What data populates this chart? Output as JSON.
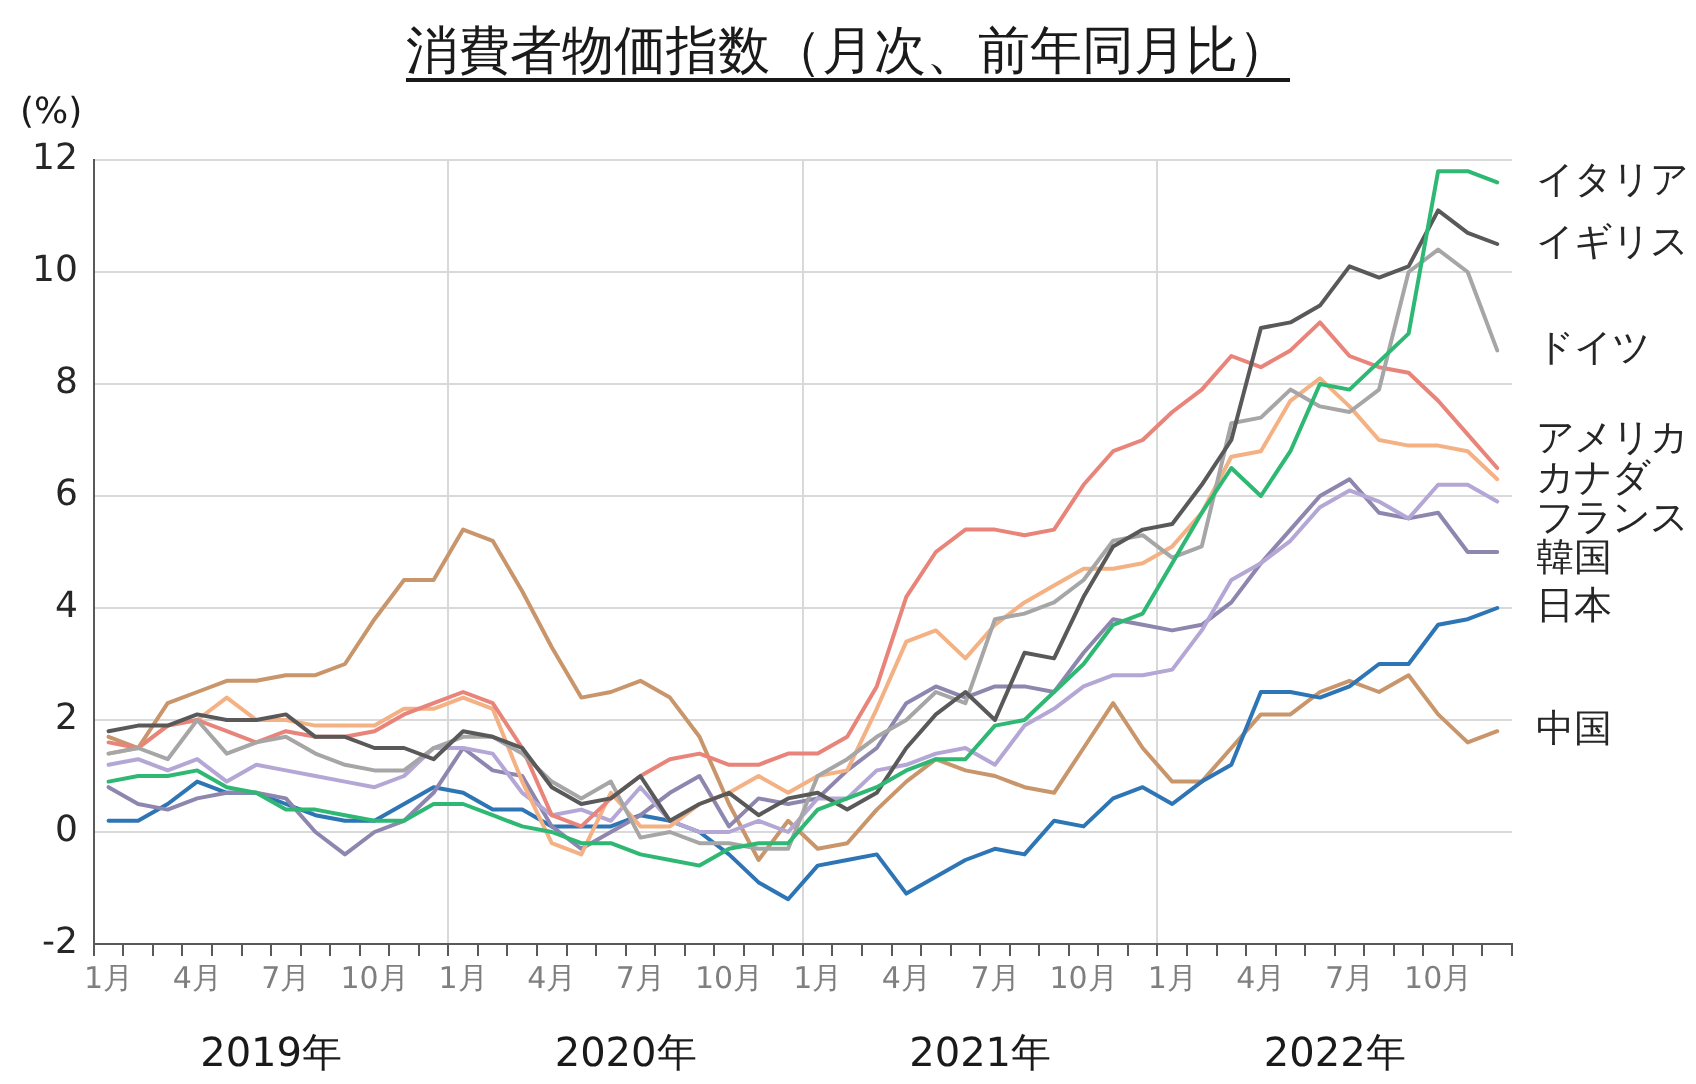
{
  "chart_data": {
    "type": "line",
    "title": "消費者物価指数（月次、前年同月比）",
    "ylabel": "(%)",
    "categories": [
      "1月",
      null,
      null,
      "4月",
      null,
      null,
      "7月",
      null,
      null,
      "10月",
      null,
      null,
      "1月",
      null,
      null,
      "4月",
      null,
      null,
      "7月",
      null,
      null,
      "10月",
      null,
      null,
      "1月",
      null,
      null,
      "4月",
      null,
      null,
      "7月",
      null,
      null,
      "10月",
      null,
      null,
      "1月",
      null,
      null,
      "4月",
      null,
      null,
      "7月",
      null,
      null,
      "10月",
      null,
      null
    ],
    "annotations": [
      "2019年",
      "2020年",
      "2021年",
      "2022年"
    ],
    "ylim": [
      -2,
      12
    ],
    "yticks": [
      -2,
      0,
      2,
      4,
      6,
      8,
      10,
      12
    ],
    "grid": true,
    "legend": false,
    "marker": "none",
    "line_style": "solid",
    "series": [
      {
        "name": "イタリア",
        "color": "#2eb873",
        "values": [
          0.9,
          1.0,
          1.0,
          1.1,
          0.8,
          0.7,
          0.4,
          0.4,
          0.3,
          0.2,
          0.2,
          0.5,
          0.5,
          0.3,
          0.1,
          0.0,
          -0.2,
          -0.2,
          -0.4,
          -0.5,
          -0.6,
          -0.3,
          -0.2,
          -0.2,
          0.4,
          0.6,
          0.8,
          1.1,
          1.3,
          1.3,
          1.9,
          2.0,
          2.5,
          3.0,
          3.7,
          3.9,
          4.8,
          5.7,
          6.5,
          6.0,
          6.8,
          8.0,
          7.9,
          8.4,
          8.9,
          11.8,
          11.8,
          11.6
        ]
      },
      {
        "name": "イギリス",
        "color": "#595959",
        "values": [
          1.8,
          1.9,
          1.9,
          2.1,
          2.0,
          2.0,
          2.1,
          1.7,
          1.7,
          1.5,
          1.5,
          1.3,
          1.8,
          1.7,
          1.5,
          0.8,
          0.5,
          0.6,
          1.0,
          0.2,
          0.5,
          0.7,
          0.3,
          0.6,
          0.7,
          0.4,
          0.7,
          1.5,
          2.1,
          2.5,
          2.0,
          3.2,
          3.1,
          4.2,
          5.1,
          5.4,
          5.5,
          6.2,
          7.0,
          9.0,
          9.1,
          9.4,
          10.1,
          9.9,
          10.1,
          11.1,
          10.7,
          10.5
        ]
      },
      {
        "name": "ドイツ",
        "color": "#a6a6a6",
        "values": [
          1.4,
          1.5,
          1.3,
          2.0,
          1.4,
          1.6,
          1.7,
          1.4,
          1.2,
          1.1,
          1.1,
          1.5,
          1.7,
          1.7,
          1.4,
          0.9,
          0.6,
          0.9,
          -0.1,
          0.0,
          -0.2,
          -0.2,
          -0.3,
          -0.3,
          1.0,
          1.3,
          1.7,
          2.0,
          2.5,
          2.3,
          3.8,
          3.9,
          4.1,
          4.5,
          5.2,
          5.3,
          4.9,
          5.1,
          7.3,
          7.4,
          7.9,
          7.6,
          7.5,
          7.9,
          10.0,
          10.4,
          10.0,
          8.6
        ]
      },
      {
        "name": "アメリカ",
        "color": "#e8847a",
        "values": [
          1.6,
          1.5,
          1.9,
          2.0,
          1.8,
          1.6,
          1.8,
          1.7,
          1.7,
          1.8,
          2.1,
          2.3,
          2.5,
          2.3,
          1.5,
          0.3,
          0.1,
          0.6,
          1.0,
          1.3,
          1.4,
          1.2,
          1.2,
          1.4,
          1.4,
          1.7,
          2.6,
          4.2,
          5.0,
          5.4,
          5.4,
          5.3,
          5.4,
          6.2,
          6.8,
          7.0,
          7.5,
          7.9,
          8.5,
          8.3,
          8.6,
          9.1,
          8.5,
          8.3,
          8.2,
          7.7,
          7.1,
          6.5
        ]
      },
      {
        "name": "カナダ",
        "color": "#f4b183",
        "values": [
          1.4,
          1.5,
          1.9,
          2.0,
          2.4,
          2.0,
          2.0,
          1.9,
          1.9,
          1.9,
          2.2,
          2.2,
          2.4,
          2.2,
          0.9,
          -0.2,
          -0.4,
          0.7,
          0.1,
          0.1,
          0.5,
          0.7,
          1.0,
          0.7,
          1.0,
          1.1,
          2.2,
          3.4,
          3.6,
          3.1,
          3.7,
          4.1,
          4.4,
          4.7,
          4.7,
          4.8,
          5.1,
          5.7,
          6.7,
          6.8,
          7.7,
          8.1,
          7.6,
          7.0,
          6.9,
          6.9,
          6.8,
          6.3
        ]
      },
      {
        "name": "フランス",
        "color": "#b4a7d6",
        "values": [
          1.2,
          1.3,
          1.1,
          1.3,
          0.9,
          1.2,
          1.1,
          1.0,
          0.9,
          0.8,
          1.0,
          1.5,
          1.5,
          1.4,
          0.7,
          0.3,
          0.4,
          0.2,
          0.8,
          0.2,
          0.0,
          0.0,
          0.2,
          0.0,
          0.6,
          0.6,
          1.1,
          1.2,
          1.4,
          1.5,
          1.2,
          1.9,
          2.2,
          2.6,
          2.8,
          2.8,
          2.9,
          3.6,
          4.5,
          4.8,
          5.2,
          5.8,
          6.1,
          5.9,
          5.6,
          6.2,
          6.2,
          5.9
        ]
      },
      {
        "name": "韓国",
        "color": "#8e86ae",
        "values": [
          0.8,
          0.5,
          0.4,
          0.6,
          0.7,
          0.7,
          0.6,
          0.0,
          -0.4,
          0.0,
          0.2,
          0.7,
          1.5,
          1.1,
          1.0,
          0.1,
          -0.3,
          0.0,
          0.3,
          0.7,
          1.0,
          0.1,
          0.6,
          0.5,
          0.6,
          1.1,
          1.5,
          2.3,
          2.6,
          2.4,
          2.6,
          2.6,
          2.5,
          3.2,
          3.8,
          3.7,
          3.6,
          3.7,
          4.1,
          4.8,
          5.4,
          6.0,
          6.3,
          5.7,
          5.6,
          5.7,
          5.0,
          5.0
        ]
      },
      {
        "name": "日本",
        "color": "#2e75b6",
        "values": [
          0.2,
          0.2,
          0.5,
          0.9,
          0.7,
          0.7,
          0.5,
          0.3,
          0.2,
          0.2,
          0.5,
          0.8,
          0.7,
          0.4,
          0.4,
          0.1,
          0.1,
          0.1,
          0.3,
          0.2,
          0.0,
          -0.4,
          -0.9,
          -1.2,
          -0.6,
          -0.5,
          -0.4,
          -1.1,
          -0.8,
          -0.5,
          -0.3,
          -0.4,
          0.2,
          0.1,
          0.6,
          0.8,
          0.5,
          0.9,
          1.2,
          2.5,
          2.5,
          2.4,
          2.6,
          3.0,
          3.0,
          3.7,
          3.8,
          4.0
        ]
      },
      {
        "name": "中国",
        "color": "#c9956b",
        "values": [
          1.7,
          1.5,
          2.3,
          2.5,
          2.7,
          2.7,
          2.8,
          2.8,
          3.0,
          3.8,
          4.5,
          4.5,
          5.4,
          5.2,
          4.3,
          3.3,
          2.4,
          2.5,
          2.7,
          2.4,
          1.7,
          0.5,
          -0.5,
          0.2,
          -0.3,
          -0.2,
          0.4,
          0.9,
          1.3,
          1.1,
          1.0,
          0.8,
          0.7,
          1.5,
          2.3,
          1.5,
          0.9,
          0.9,
          1.5,
          2.1,
          2.1,
          2.5,
          2.7,
          2.5,
          2.8,
          2.1,
          1.6,
          1.8
        ]
      }
    ]
  }
}
